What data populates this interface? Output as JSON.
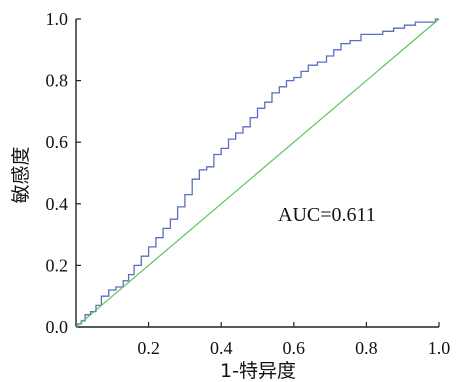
{
  "chart_data": {
    "type": "line",
    "xlabel": "1-特异度",
    "ylabel": "敏感度",
    "xlim": [
      0,
      1
    ],
    "ylim": [
      0,
      1
    ],
    "x_tick_labels": [
      "0.2",
      "0.4",
      "0.6",
      "0.8",
      "1.0"
    ],
    "y_tick_labels": [
      "0.0",
      "0.2",
      "0.4",
      "0.6",
      "0.8",
      "1.0"
    ],
    "annotation": "AUC=0.611",
    "grid": false,
    "series": [
      {
        "color": "#5a6fc0",
        "points": [
          [
            0,
            0
          ],
          [
            0.01,
            0.01
          ],
          [
            0.02,
            0.02
          ],
          [
            0.03,
            0.04
          ],
          [
            0.05,
            0.05
          ],
          [
            0.06,
            0.07
          ],
          [
            0.08,
            0.1
          ],
          [
            0.1,
            0.12
          ],
          [
            0.12,
            0.13
          ],
          [
            0.14,
            0.15
          ],
          [
            0.15,
            0.17
          ],
          [
            0.17,
            0.2
          ],
          [
            0.19,
            0.23
          ],
          [
            0.21,
            0.26
          ],
          [
            0.23,
            0.29
          ],
          [
            0.25,
            0.32
          ],
          [
            0.27,
            0.35
          ],
          [
            0.29,
            0.39
          ],
          [
            0.31,
            0.43
          ],
          [
            0.33,
            0.48
          ],
          [
            0.35,
            0.51
          ],
          [
            0.37,
            0.52
          ],
          [
            0.39,
            0.56
          ],
          [
            0.41,
            0.58
          ],
          [
            0.43,
            0.61
          ],
          [
            0.45,
            0.63
          ],
          [
            0.47,
            0.65
          ],
          [
            0.49,
            0.68
          ],
          [
            0.51,
            0.71
          ],
          [
            0.53,
            0.73
          ],
          [
            0.55,
            0.76
          ],
          [
            0.57,
            0.78
          ],
          [
            0.59,
            0.8
          ],
          [
            0.61,
            0.81
          ],
          [
            0.63,
            0.83
          ],
          [
            0.65,
            0.85
          ],
          [
            0.68,
            0.86
          ],
          [
            0.7,
            0.88
          ],
          [
            0.72,
            0.9
          ],
          [
            0.74,
            0.92
          ],
          [
            0.77,
            0.93
          ],
          [
            0.8,
            0.95
          ],
          [
            0.83,
            0.95
          ],
          [
            0.86,
            0.96
          ],
          [
            0.89,
            0.97
          ],
          [
            0.92,
            0.98
          ],
          [
            0.95,
            0.99
          ],
          [
            0.98,
            0.99
          ],
          [
            1.0,
            1.0
          ]
        ]
      },
      {
        "color": "#5cc45c",
        "points": [
          [
            0,
            0
          ],
          [
            1,
            1
          ]
        ]
      }
    ]
  }
}
